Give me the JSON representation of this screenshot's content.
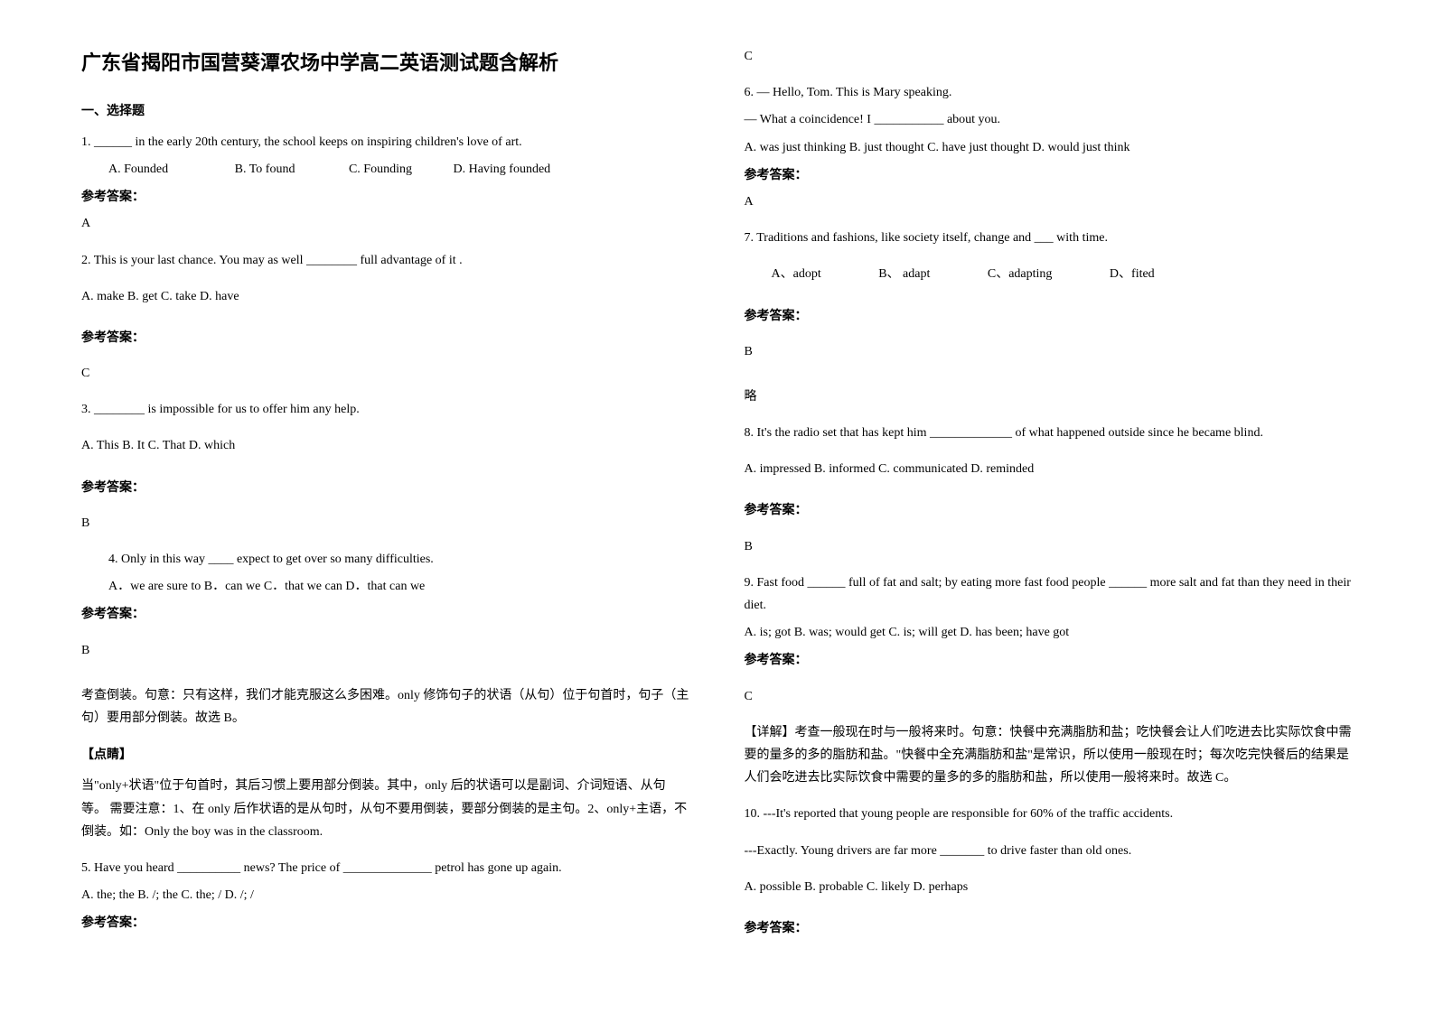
{
  "title": "广东省揭阳市国营葵潭农场中学高二英语测试题含解析",
  "section1": "一、选择题",
  "q1": {
    "text": "1. ______ in the early 20th century, the school keeps on inspiring children's love of art.",
    "optA": "A. Founded",
    "optB": "B. To found",
    "optC": "C. Founding",
    "optD": "D. Having founded",
    "answerLabel": "参考答案：",
    "answer": "A"
  },
  "q2": {
    "text": "2. This is your last chance. You may as well ________ full advantage of it .",
    "opts": "A. make        B. get        C. take        D. have",
    "answerLabel": "参考答案：",
    "answer": "C"
  },
  "q3": {
    "text": "3. ________ is impossible for us to offer him any help.",
    "opts": "A. This     B. It     C. That    D. which",
    "answerLabel": "参考答案：",
    "answer": "B"
  },
  "q4": {
    "text": "4. Only in this way ____ expect to get over so many difficulties.",
    "opts": "A．we are sure to   B．can we   C．that we can   D．that can we",
    "answerLabel": "参考答案：",
    "answer": "B",
    "explain1": "考查倒装。句意：只有这样，我们才能克服这么多困难。only 修饰句子的状语（从句）位于句首时，句子（主句）要用部分倒装。故选 B。",
    "tipLabel": "【点睛】",
    "explain2": "当\"only+状语\"位于句首时，其后习惯上要用部分倒装。其中，only 后的状语可以是副词、介词短语、从句等。 需要注意：1、在 only 后作状语的是从句时，从句不要用倒装，要部分倒装的是主句。2、only+主语，不倒装。如：Only the boy was in the classroom."
  },
  "q5": {
    "text": "5.  Have you heard __________ news? The price of ______________ petrol has gone up again.",
    "opts": "A. the; the                    B. /; the                      C. the; /                           D. /; /",
    "answerLabel": "参考答案：",
    "answer": "C"
  },
  "q6": {
    "line1": "6. — Hello, Tom. This is Mary speaking.",
    "line2": "— What a coincidence! I ___________ about you.",
    "opts": "A. was just thinking B. just thought                          C. have just thought      D. would just think",
    "answerLabel": "参考答案：",
    "answer": "A"
  },
  "q7": {
    "text": "7. Traditions and fashions, like society itself, change and ___  with time.",
    "optA": "A、adopt",
    "optB": "B、 adapt",
    "optC": "C、adapting",
    "optD": "D、fited",
    "answerLabel": "参考答案：",
    "answer": "B",
    "note": "略"
  },
  "q8": {
    "text": "8. It's the radio set that has kept him _____________ of what happened outside since he became blind.",
    "opts": "A. impressed        B. informed         C. communicated          D. reminded",
    "answerLabel": "参考答案：",
    "answer": "B"
  },
  "q9": {
    "text": "9. Fast food ______ full of fat and salt; by eating more fast food people ______ more salt and fat than they need in their diet.",
    "opts": "A. is; got          B. was; would get         C. is; will get     D. has been; have got",
    "answerLabel": "参考答案：",
    "answer": "C",
    "explain": "【详解】考查一般现在时与一般将来时。句意：快餐中充满脂肪和盐；吃快餐会让人们吃进去比实际饮食中需要的量多的多的脂肪和盐。\"快餐中全充满脂肪和盐\"是常识，所以使用一般现在时；每次吃完快餐后的结果是人们会吃进去比实际饮食中需要的量多的多的脂肪和盐，所以使用一般将来时。故选 C。"
  },
  "q10": {
    "line1": "10. ---It's reported that young people are responsible for 60% of the traffic accidents.",
    "line2": "---Exactly. Young drivers are far more _______ to drive faster than old ones.",
    "opts": "A. possible     B. probable     C. likely    D. perhaps",
    "answerLabel": "参考答案："
  }
}
